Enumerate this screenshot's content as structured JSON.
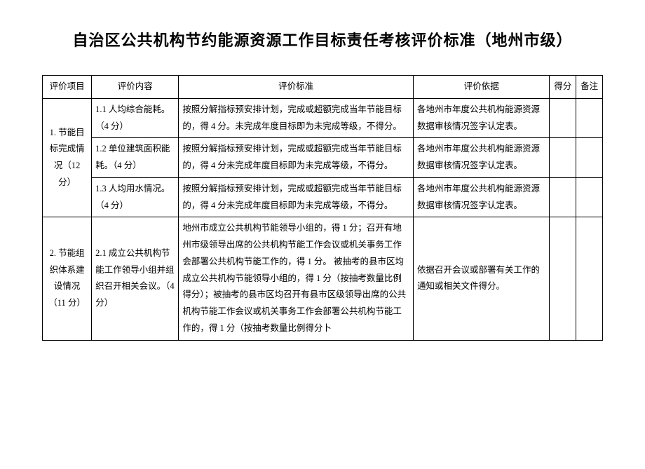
{
  "title": "自治区公共机构节约能源资源工作目标责任考核评价标准（地州市级）",
  "headers": {
    "project": "评价项目",
    "content": "评价内容",
    "standard": "评价标准",
    "basis": "评价依据",
    "score": "得分",
    "note": "备注"
  },
  "sections": [
    {
      "project": "1. 节能目标完成情况（12 分）",
      "rows": [
        {
          "content": "1.1 人均综合能耗。（4 分）",
          "standard": "按照分解指标预安排计划，完成或超额完成当年节能目标的，得 4 分。未完成年度目标即为未完成等级，不得分。",
          "basis": "各地州市年度公共机构能源资源数据审核情况签字认定表。"
        },
        {
          "content": "1.2 单位建筑面积能耗。（4 分）",
          "standard": "按照分解指标预安排计划，完成或超额完成当年节能目标的，得 4 分未完成年度目标即为未完成等级，不得分。",
          "basis": "各地州市年度公共机构能源资源数据审核情况签字认定表。"
        },
        {
          "content": "1.3 人均用水情况。（4 分）",
          "standard": "按照分解指标预安排计划，完成或超额完成当年节能目标的，得 4 分未完成年度目标即为未完成等级，不得分。",
          "basis": "各地州市年度公共机构能源资源数据审核情况签字认定表。"
        }
      ]
    },
    {
      "project": "2. 节能组织体系建设情况（11 分）",
      "rows": [
        {
          "content": "2.1 成立公共机构节能工作领导小组并组织召开相关会议。（4 分）",
          "standard": "地州市成立公共机构节能领导小组的，得 1 分；召开有地州市级领导出席的公共机构节能工作会议或机关事务工作会部署公共机构节能工作的，得 1 分。\n被抽考的县市区均成立公共机构节能领导小组的，得 1 分（按抽考数量比例得分）；被抽考的县市区均召开有县市区级领导出席的公共机构节能工作会议或机关事务工作会部署公共机构节能工作的，得 1 分（按抽考数量比例得分卜",
          "basis": "依据召开会议或部署有关工作的通知或相关文件得分。"
        }
      ]
    }
  ]
}
